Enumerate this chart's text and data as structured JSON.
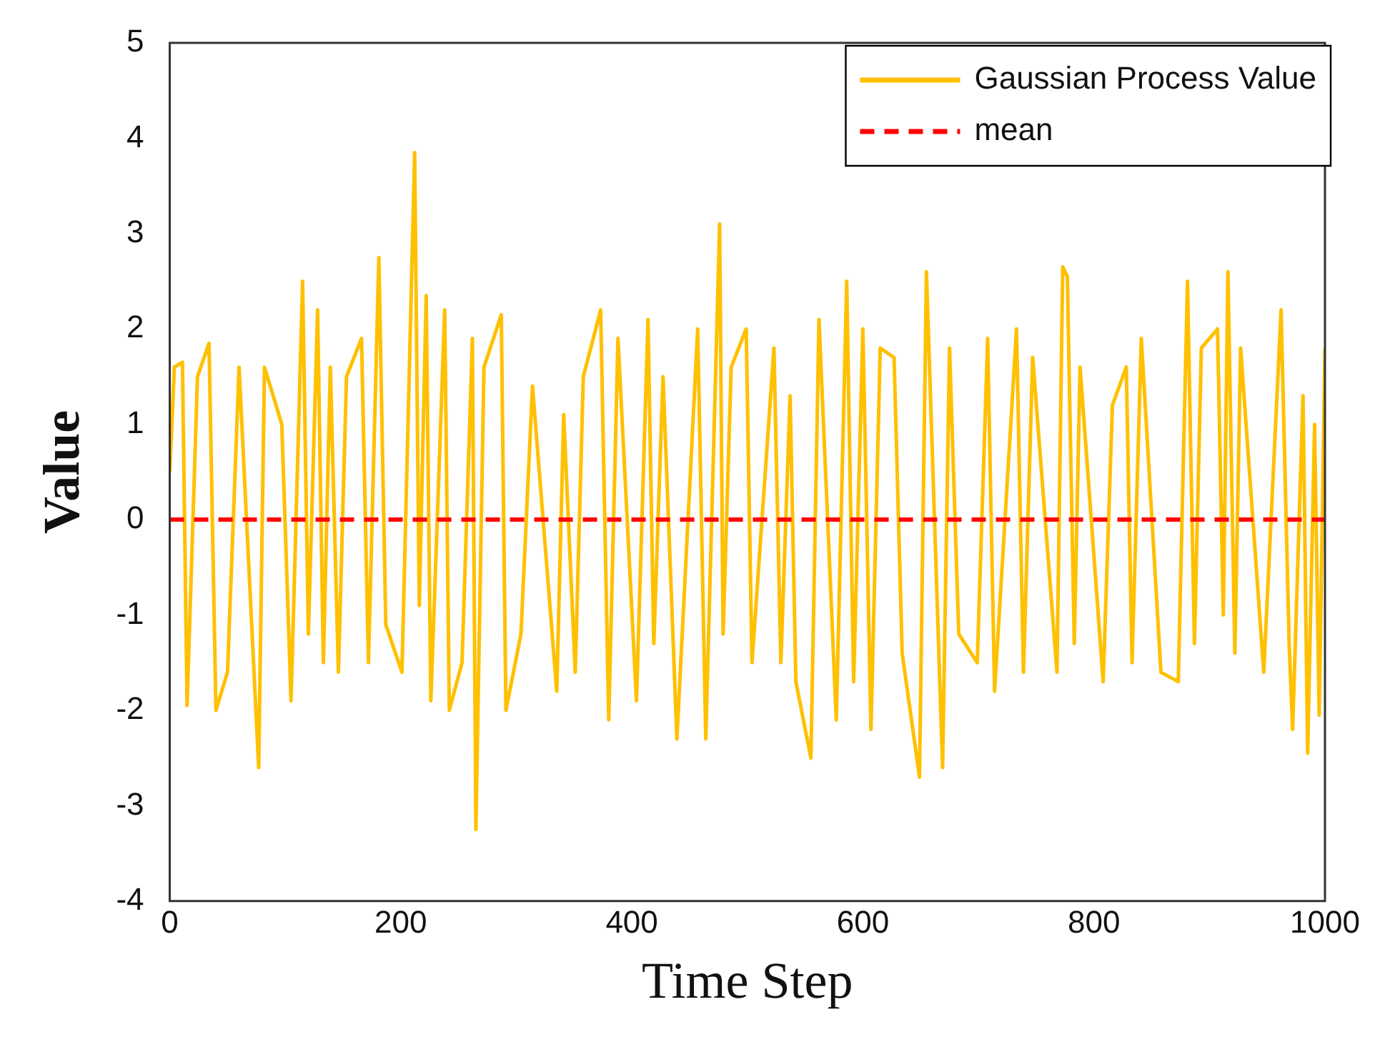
{
  "chart_data": {
    "type": "line",
    "xlabel": "Time Step",
    "ylabel": "Value",
    "xlim": [
      0,
      1000
    ],
    "xticks": [
      0,
      200,
      400,
      600,
      800,
      1000
    ],
    "ylim": [
      -4,
      5
    ],
    "yticks": [
      -4,
      -3,
      -2,
      -1,
      0,
      1,
      2,
      3,
      4,
      5
    ],
    "grid": false,
    "legend": "top right",
    "marker": "none",
    "series": [
      {
        "name": "Gaussian Process Value",
        "color": "#ffc000",
        "line_style": "solid",
        "x": [
          0,
          4,
          11,
          15,
          24,
          34,
          40,
          50,
          60,
          77,
          82,
          97,
          105,
          115,
          120,
          128,
          133,
          139,
          146,
          153,
          166,
          172,
          181,
          187,
          201,
          212,
          216,
          222,
          226,
          238,
          242,
          253,
          262,
          265,
          272,
          287,
          291,
          304,
          314,
          335,
          341,
          351,
          358,
          373,
          380,
          388,
          404,
          414,
          419,
          427,
          439,
          457,
          464,
          476,
          479,
          486,
          499,
          504,
          523,
          529,
          537,
          542,
          555,
          562,
          577,
          586,
          592,
          600,
          607,
          615,
          627,
          634,
          649,
          655,
          669,
          675,
          683,
          699,
          708,
          714,
          733,
          739,
          747,
          768,
          773,
          777,
          783,
          788,
          808,
          816,
          828,
          833,
          841,
          858,
          873,
          881,
          887,
          893,
          907,
          912,
          916,
          922,
          927,
          947,
          962,
          969,
          972,
          981,
          985,
          991,
          995,
          1000
        ],
        "values": [
          0.5,
          1.6,
          1.65,
          -1.95,
          1.5,
          1.85,
          -2.0,
          -1.6,
          1.6,
          -2.6,
          1.6,
          1.0,
          -1.9,
          2.5,
          -1.2,
          2.2,
          -1.5,
          1.6,
          -1.6,
          1.5,
          1.9,
          -1.5,
          2.75,
          -1.1,
          -1.6,
          3.85,
          -0.9,
          2.35,
          -1.9,
          2.2,
          -2.0,
          -1.5,
          1.9,
          -3.25,
          1.6,
          2.15,
          -2.0,
          -1.2,
          1.4,
          -1.8,
          1.1,
          -1.6,
          1.5,
          2.2,
          -2.1,
          1.9,
          -1.9,
          2.1,
          -1.3,
          1.5,
          -2.3,
          2.0,
          -2.3,
          3.1,
          -1.2,
          1.6,
          2.0,
          -1.5,
          1.8,
          -1.5,
          1.3,
          -1.7,
          -2.5,
          2.1,
          -2.1,
          2.5,
          -1.7,
          2.0,
          -2.2,
          1.8,
          1.7,
          -1.4,
          -2.7,
          2.6,
          -2.6,
          1.8,
          -1.2,
          -1.5,
          1.9,
          -1.8,
          2.0,
          -1.6,
          1.7,
          -1.6,
          2.65,
          2.55,
          -1.3,
          1.6,
          -1.7,
          1.2,
          1.6,
          -1.5,
          1.9,
          -1.6,
          -1.7,
          2.5,
          -1.3,
          1.8,
          2.0,
          -1.0,
          2.6,
          -1.4,
          1.8,
          -1.6,
          2.2,
          -1.3,
          -2.2,
          1.3,
          -2.45,
          1.0,
          -2.05,
          1.8
        ]
      }
    ],
    "ref_lines": [
      {
        "axis": "y",
        "value": 0,
        "label": "mean",
        "color": "#ff0000",
        "line_style": "dashed"
      }
    ]
  }
}
